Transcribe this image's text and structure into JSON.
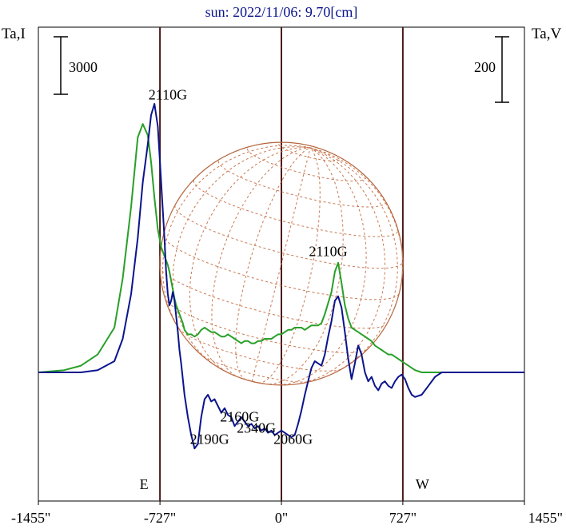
{
  "chart_data": {
    "type": "line",
    "title": "sun: 2022/11/06: 9.70[cm]",
    "ylabel_left": "Ta,I",
    "ylabel_right": "Ta,V",
    "x_ticks": [
      {
        "value": -1455,
        "label": "-1455\""
      },
      {
        "value": -727,
        "label": "-727\""
      },
      {
        "value": 0,
        "label": "0\""
      },
      {
        "value": 727,
        "label": "727\""
      },
      {
        "value": 1455,
        "label": "1455\""
      }
    ],
    "xlim": [
      -1455,
      1455
    ],
    "scale_bars": [
      {
        "axis": "left",
        "label": "3000",
        "value": 3000
      },
      {
        "axis": "right",
        "label": "200",
        "value": 200
      }
    ],
    "limb_markers": [
      {
        "x": -727,
        "label": "E"
      },
      {
        "x": 0,
        "label": ""
      },
      {
        "x": 727,
        "label": "W"
      }
    ],
    "annotations": [
      {
        "text": "2110G",
        "x": -680,
        "y": 12.2,
        "color": "#000000"
      },
      {
        "text": "2110G",
        "x": 280,
        "y": 5.2,
        "color": "#000000"
      },
      {
        "text": "2160G",
        "x": -250,
        "y": -2.2,
        "color": "#000000"
      },
      {
        "text": "2340G",
        "x": -150,
        "y": -2.7,
        "color": "#000000"
      },
      {
        "text": "2190G",
        "x": -430,
        "y": -3.2,
        "color": "#000000"
      },
      {
        "text": "2060G",
        "x": 70,
        "y": -3.2,
        "color": "#000000"
      }
    ],
    "series": [
      {
        "name": "",
        "color": "#28a028",
        "axis": "left",
        "x": [
          -1455,
          -1300,
          -1200,
          -1100,
          -1000,
          -950,
          -900,
          -860,
          -830,
          -800,
          -780,
          -760,
          -740,
          -720,
          -700,
          -690,
          -680,
          -670,
          -660,
          -650,
          -640,
          -630,
          -620,
          -610,
          -600,
          -590,
          -580,
          -560,
          -540,
          -520,
          -500,
          -480,
          -460,
          -440,
          -420,
          -400,
          -380,
          -360,
          -340,
          -320,
          -300,
          -280,
          -260,
          -240,
          -220,
          -200,
          -180,
          -160,
          -140,
          -120,
          -100,
          -80,
          -60,
          -40,
          -20,
          0,
          20,
          40,
          60,
          80,
          100,
          120,
          140,
          160,
          180,
          200,
          220,
          240,
          260,
          280,
          300,
          320,
          340,
          360,
          380,
          400,
          420,
          440,
          460,
          480,
          500,
          520,
          540,
          560,
          580,
          600,
          620,
          640,
          660,
          680,
          700,
          720,
          740,
          760,
          780,
          800,
          840,
          880,
          920,
          960,
          1000,
          1100,
          1200,
          1300,
          1455
        ],
        "y": [
          0.0,
          0.1,
          0.3,
          0.8,
          2.0,
          4.2,
          7.4,
          10.5,
          11.1,
          10.6,
          9.4,
          7.8,
          6.4,
          5.6,
          5.2,
          5.0,
          4.8,
          4.5,
          4.1,
          3.7,
          3.3,
          3.0,
          2.8,
          2.6,
          2.4,
          2.2,
          1.9,
          1.7,
          1.7,
          1.6,
          1.7,
          1.9,
          2.0,
          1.9,
          1.8,
          1.8,
          1.7,
          1.6,
          1.6,
          1.7,
          1.6,
          1.5,
          1.4,
          1.3,
          1.4,
          1.4,
          1.3,
          1.3,
          1.4,
          1.4,
          1.5,
          1.5,
          1.5,
          1.6,
          1.7,
          1.7,
          1.8,
          1.9,
          1.9,
          2.0,
          2.0,
          2.0,
          1.9,
          2.0,
          2.1,
          2.1,
          2.1,
          2.2,
          2.6,
          3.1,
          3.6,
          4.5,
          4.9,
          4.0,
          3.0,
          2.4,
          2.0,
          1.9,
          1.8,
          1.7,
          1.6,
          1.5,
          1.4,
          1.2,
          1.1,
          1.0,
          0.9,
          0.8,
          0.8,
          0.7,
          0.6,
          0.5,
          0.4,
          0.3,
          0.2,
          0.1,
          0.0,
          0.0,
          0.0,
          0.0,
          0.0,
          0.0,
          0.0,
          0.0,
          0.0
        ]
      },
      {
        "name": "",
        "color": "#0a148c",
        "axis": "left",
        "x": [
          -1455,
          -1300,
          -1200,
          -1100,
          -1000,
          -950,
          -900,
          -860,
          -830,
          -800,
          -780,
          -760,
          -740,
          -720,
          -700,
          -690,
          -680,
          -670,
          -660,
          -650,
          -640,
          -630,
          -620,
          -610,
          -600,
          -590,
          -580,
          -560,
          -540,
          -520,
          -500,
          -480,
          -460,
          -440,
          -420,
          -400,
          -380,
          -360,
          -340,
          -320,
          -300,
          -280,
          -260,
          -240,
          -220,
          -200,
          -180,
          -160,
          -140,
          -120,
          -100,
          -80,
          -60,
          -40,
          -20,
          0,
          20,
          40,
          60,
          80,
          100,
          120,
          140,
          160,
          180,
          200,
          220,
          240,
          260,
          280,
          300,
          320,
          340,
          360,
          380,
          400,
          420,
          440,
          460,
          480,
          500,
          520,
          540,
          560,
          580,
          600,
          620,
          640,
          660,
          680,
          700,
          720,
          740,
          760,
          780,
          800,
          840,
          880,
          920,
          960,
          1000,
          1100,
          1200,
          1300,
          1455
        ],
        "y": [
          0.0,
          0.0,
          0.0,
          0.1,
          0.5,
          1.5,
          3.5,
          6.0,
          8.5,
          10.2,
          11.5,
          12.0,
          11.0,
          8.5,
          6.0,
          4.5,
          3.5,
          3.0,
          3.2,
          3.6,
          3.2,
          2.5,
          1.8,
          1.0,
          0.4,
          -0.3,
          -1.0,
          -2.0,
          -2.8,
          -3.4,
          -3.2,
          -2.0,
          -1.2,
          -1.0,
          -1.3,
          -1.2,
          -1.5,
          -1.8,
          -1.6,
          -1.9,
          -2.0,
          -2.4,
          -2.2,
          -2.0,
          -2.2,
          -2.4,
          -2.3,
          -2.5,
          -2.4,
          -2.6,
          -2.5,
          -2.7,
          -2.6,
          -2.8,
          -2.7,
          -2.6,
          -2.7,
          -2.8,
          -2.9,
          -2.8,
          -2.3,
          -1.7,
          -1.0,
          -0.4,
          0.2,
          0.5,
          0.4,
          0.3,
          0.8,
          1.6,
          2.3,
          3.2,
          3.4,
          2.9,
          1.8,
          0.6,
          -0.3,
          0.4,
          1.2,
          0.8,
          0.0,
          -0.4,
          -0.2,
          -0.6,
          -0.8,
          -0.5,
          -0.4,
          -0.6,
          -0.7,
          -0.4,
          -0.2,
          -0.1,
          -0.3,
          -0.7,
          -1.0,
          -1.1,
          -1.0,
          -0.6,
          -0.2,
          0.0,
          0.0,
          0.0,
          0.0,
          0.0,
          0.0
        ]
      }
    ]
  }
}
